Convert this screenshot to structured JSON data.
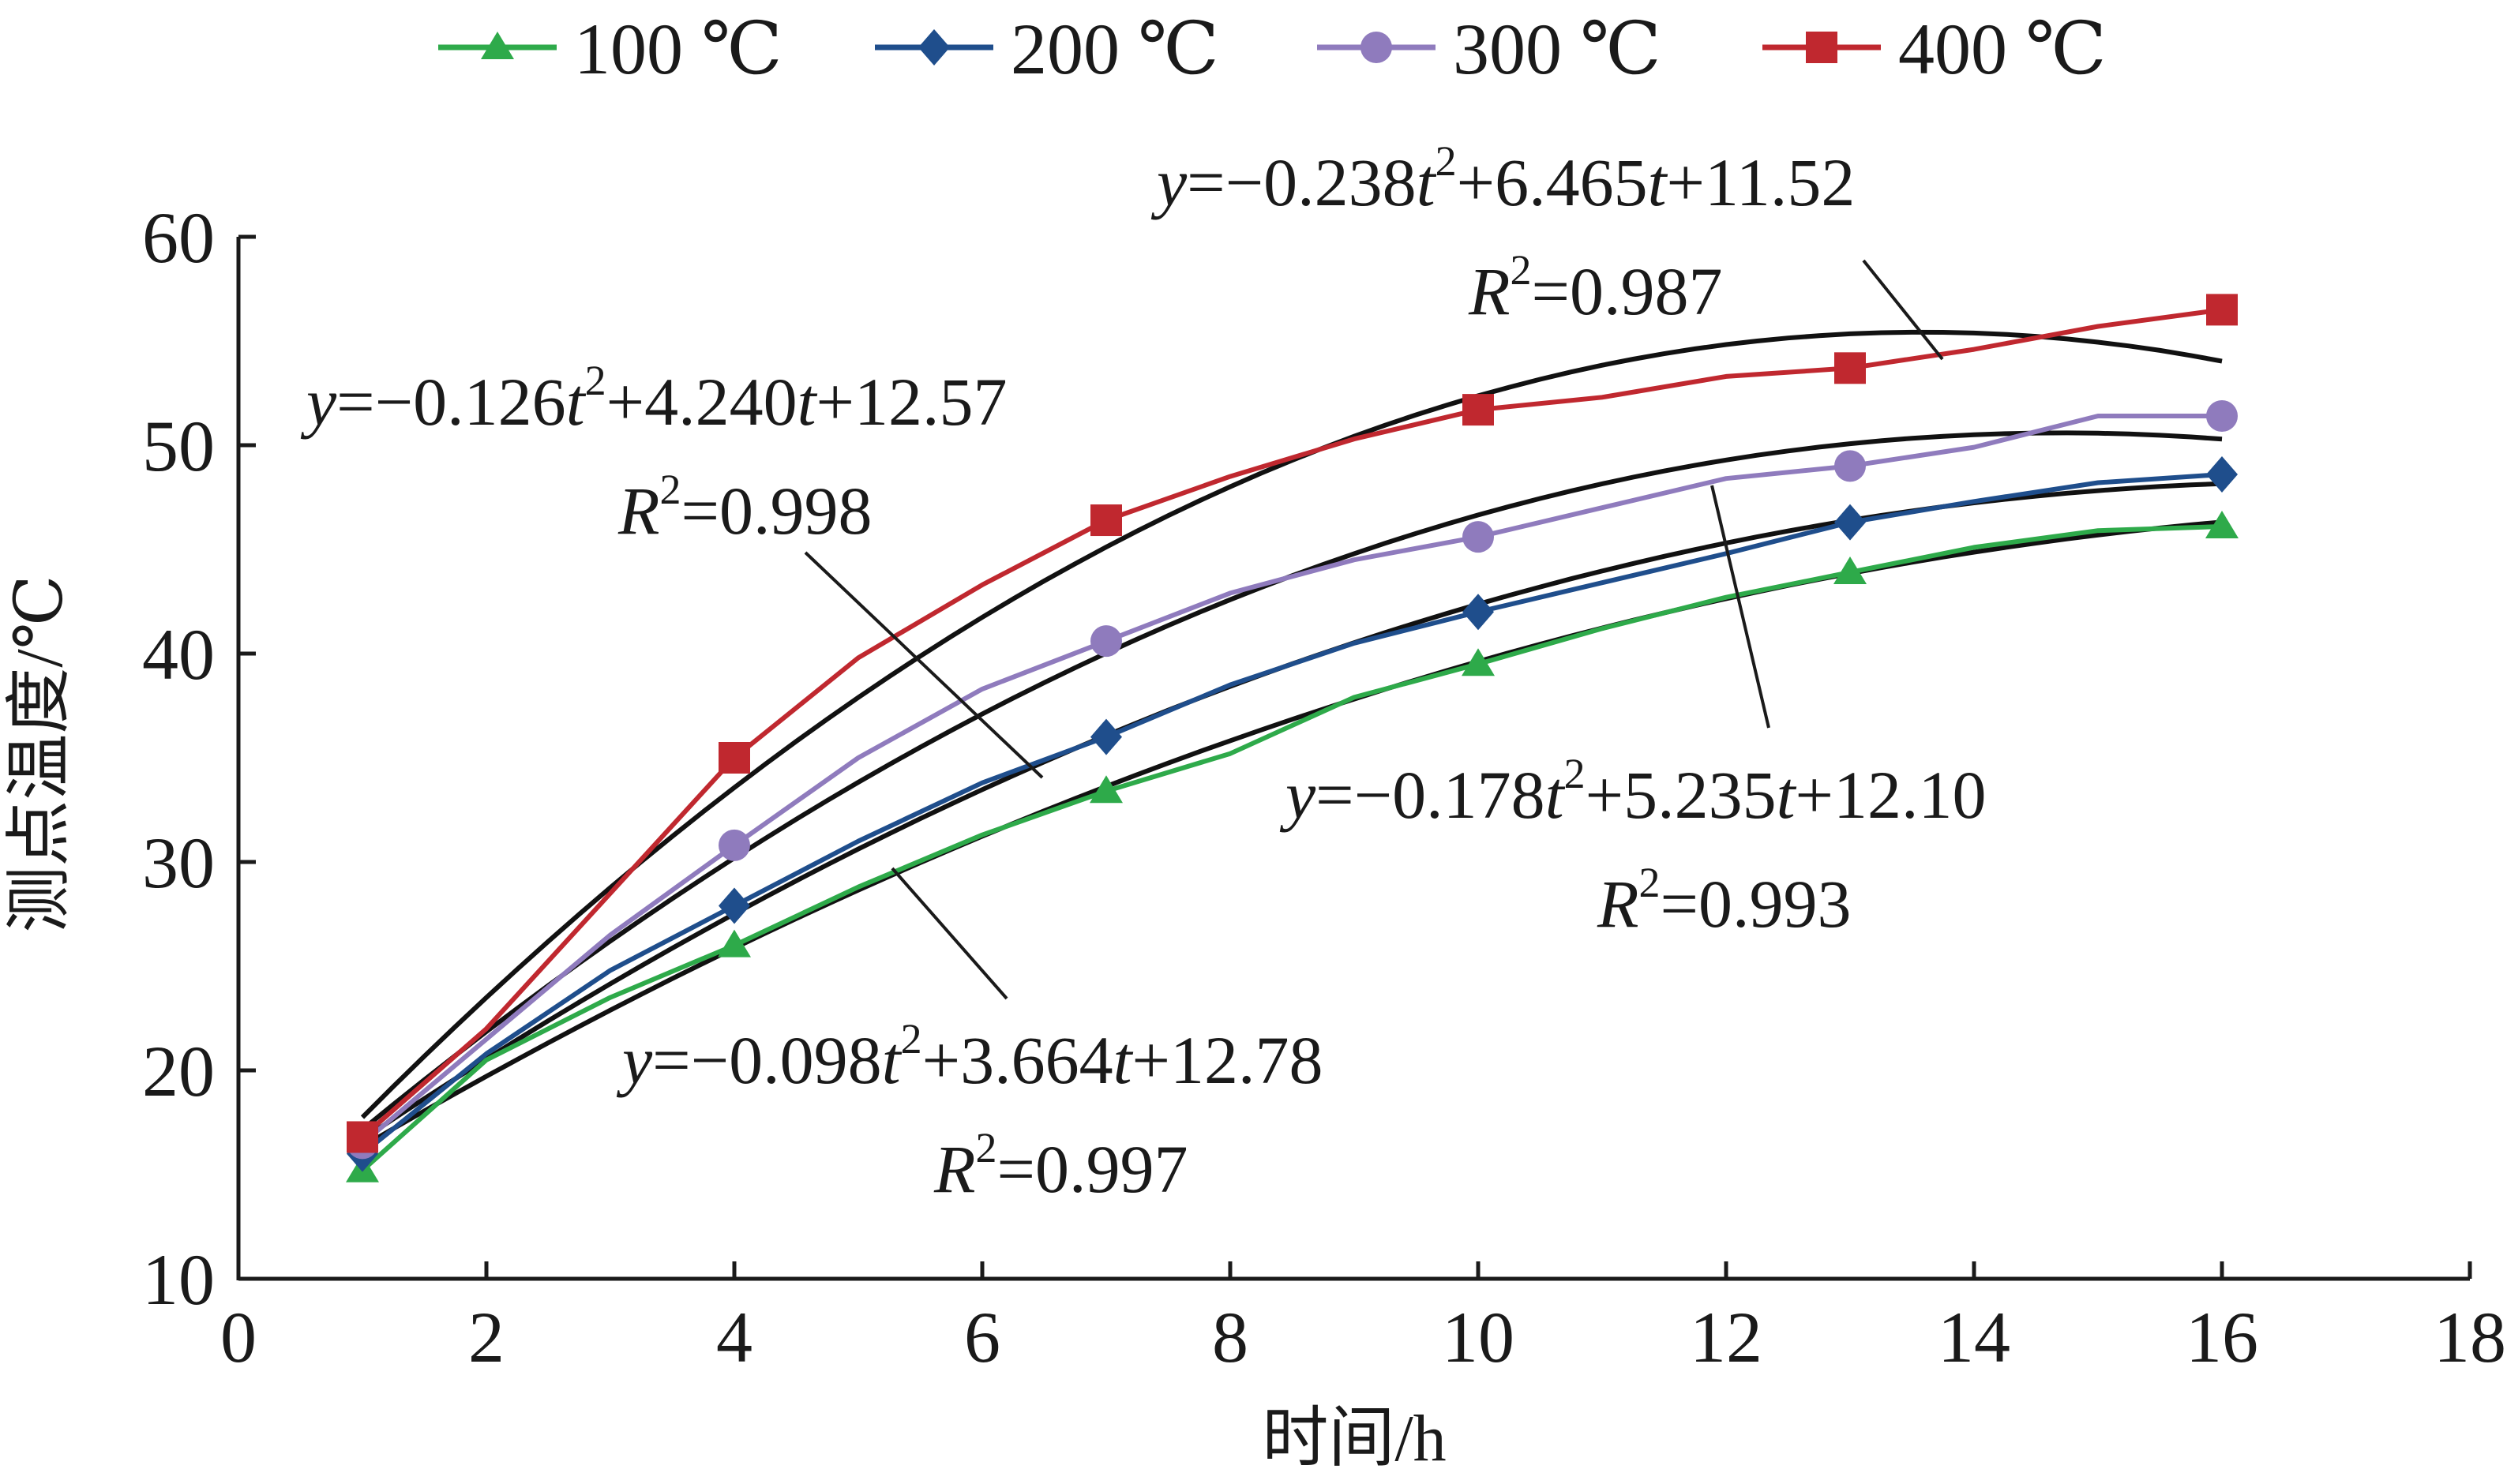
{
  "chart_data": {
    "type": "line",
    "xlabel": "时间/h",
    "ylabel": "测点温度/℃",
    "xlim": [
      0,
      18
    ],
    "ylim": [
      10,
      60
    ],
    "xticks": [
      0,
      2,
      4,
      6,
      8,
      10,
      12,
      14,
      16,
      18
    ],
    "yticks": [
      10,
      20,
      30,
      40,
      50,
      60
    ],
    "grid": false,
    "legend": "top",
    "series": [
      {
        "name": "100 ℃",
        "color": "#2eaa4a",
        "marker": "triangle",
        "x": [
          1,
          2,
          3,
          4,
          5,
          6,
          7,
          8,
          9,
          10,
          11,
          12,
          13,
          14,
          15,
          16
        ],
        "y": [
          15.2,
          20.5,
          23.5,
          26.0,
          28.8,
          31.3,
          33.4,
          35.2,
          37.9,
          39.5,
          41.2,
          42.7,
          43.9,
          45.1,
          45.9,
          46.1
        ],
        "markers_at": [
          1,
          4,
          7,
          10,
          13,
          16
        ]
      },
      {
        "name": "200 ℃",
        "color": "#1f4e8c",
        "marker": "diamond",
        "x": [
          1,
          2,
          3,
          4,
          5,
          6,
          7,
          8,
          9,
          10,
          11,
          12,
          13,
          14,
          15,
          16
        ],
        "y": [
          16.0,
          20.8,
          24.8,
          27.9,
          31.0,
          33.8,
          36.0,
          38.5,
          40.5,
          42.0,
          43.4,
          44.8,
          46.3,
          47.3,
          48.2,
          48.6
        ],
        "markers_at": [
          1,
          4,
          7,
          10,
          13,
          16
        ]
      },
      {
        "name": "300 ℃",
        "color": "#8f7bbd",
        "marker": "circle",
        "x": [
          1,
          2,
          3,
          4,
          5,
          6,
          7,
          8,
          9,
          10,
          11,
          12,
          13,
          14,
          15,
          16
        ],
        "y": [
          16.5,
          21.5,
          26.5,
          30.8,
          35.0,
          38.3,
          40.6,
          42.9,
          44.5,
          45.6,
          47.0,
          48.4,
          49.0,
          49.9,
          51.4,
          51.4
        ],
        "markers_at": [
          1,
          4,
          7,
          10,
          13,
          16
        ]
      },
      {
        "name": "400 ℃",
        "color": "#c0282f",
        "marker": "square",
        "x": [
          1,
          2,
          3,
          4,
          5,
          6,
          7,
          8,
          9,
          10,
          11,
          12,
          13,
          14,
          15,
          16
        ],
        "y": [
          16.8,
          22.0,
          28.5,
          35.0,
          39.8,
          43.3,
          46.4,
          48.5,
          50.3,
          51.7,
          52.3,
          53.3,
          53.7,
          54.6,
          55.7,
          56.5
        ],
        "markers_at": [
          1,
          4,
          7,
          10,
          13,
          16
        ]
      }
    ],
    "fits": [
      {
        "a": -0.238,
        "b": 6.465,
        "c": 11.52,
        "eq_parts": [
          "y",
          "=−0.238",
          "t",
          "2",
          "+6.465",
          "t",
          "+11.52"
        ],
        "r2_parts": [
          "R",
          "2",
          "=0.987"
        ]
      },
      {
        "a": -0.126,
        "b": 4.24,
        "c": 12.57,
        "eq_parts": [
          "y",
          "=−0.126",
          "t",
          "2",
          "+4.240",
          "t",
          "+12.57"
        ],
        "r2_parts": [
          "R",
          "2",
          "=0.998"
        ]
      },
      {
        "a": -0.178,
        "b": 5.235,
        "c": 12.1,
        "eq_parts": [
          "y",
          "=−0.178",
          "t",
          "2",
          "+5.235",
          "t",
          "+12.10"
        ],
        "r2_parts": [
          "R",
          "2",
          "=0.993"
        ]
      },
      {
        "a": -0.098,
        "b": 3.664,
        "c": 12.78,
        "eq_parts": [
          "y",
          "=−0.098",
          "t",
          "2",
          "+3.664",
          "t",
          "+12.78"
        ],
        "r2_parts": [
          "R",
          "2",
          "=0.997"
        ]
      }
    ]
  }
}
